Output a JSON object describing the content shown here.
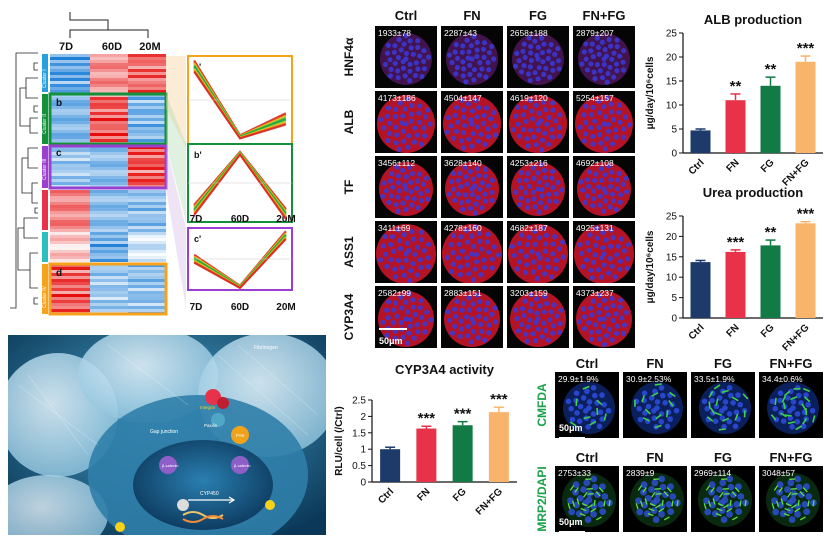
{
  "heatmap": {
    "columns": [
      "7D",
      "60D",
      "20M"
    ],
    "clusters": [
      "Cluster I",
      "Cluster II",
      "Cluster III",
      "Cluster IV"
    ],
    "box_labels": [
      "b",
      "c",
      "d"
    ],
    "trend_labels": [
      "a'",
      "b'",
      "c'"
    ],
    "trend_axis": [
      "7D",
      "60D",
      "20M"
    ],
    "colors": {
      "cluster_b": "#12903a",
      "cluster_c": "#9b3fd0",
      "cluster_d": "#f7a21b",
      "cluster_a": "#f7a21b"
    }
  },
  "micro_grid": {
    "columns": [
      "Ctrl",
      "FN",
      "FG",
      "FN+FG"
    ],
    "rows": [
      {
        "label": "HNF4α",
        "values": [
          "1933±78",
          "2287±43",
          "2658±188",
          "2879±207"
        ]
      },
      {
        "label": "ALB",
        "values": [
          "4173±186",
          "4504±147",
          "4619±120",
          "5254±157"
        ]
      },
      {
        "label": "TF",
        "values": [
          "3456±112",
          "3628±140",
          "4253±216",
          "4692±108"
        ]
      },
      {
        "label": "ASS1",
        "values": [
          "3411±69",
          "4278±160",
          "4682±187",
          "4925±131"
        ]
      },
      {
        "label": "CYP3A4",
        "values": [
          "2582±99",
          "2883±151",
          "3203±159",
          "4373±237"
        ]
      }
    ],
    "scale_bar": "50μm"
  },
  "chart_data": [
    {
      "type": "bar",
      "id": "alb",
      "title": "ALB production",
      "ylabel": "μg/day/10⁶cells",
      "categories": [
        "Ctrl",
        "FN",
        "FG",
        "FN+FG"
      ],
      "values": [
        4.7,
        11,
        14,
        19
      ],
      "errors": [
        0.3,
        1.3,
        1.8,
        1.2
      ],
      "significance": [
        "",
        "**",
        "**",
        "***"
      ],
      "ylim": [
        0,
        25
      ],
      "yticks": [
        0,
        5,
        10,
        15,
        20,
        25
      ]
    },
    {
      "type": "bar",
      "id": "urea",
      "title": "Urea production",
      "ylabel": "μg/day/10⁶cells",
      "categories": [
        "Ctrl",
        "FN",
        "FG",
        "FN+FG"
      ],
      "values": [
        13.7,
        16.2,
        17.8,
        23.2
      ],
      "errors": [
        0.4,
        0.5,
        1.3,
        0.4
      ],
      "significance": [
        "",
        "***",
        "**",
        "***"
      ],
      "ylim": [
        0,
        25
      ],
      "yticks": [
        0,
        5,
        10,
        15,
        20,
        25
      ]
    },
    {
      "type": "bar",
      "id": "cyp",
      "title": "CYP3A4 activity",
      "ylabel": "RLU/cell (/Ctrl)",
      "categories": [
        "Ctrl",
        "FN",
        "FG",
        "FN+FG"
      ],
      "values": [
        1.0,
        1.63,
        1.73,
        2.13
      ],
      "errors": [
        0.06,
        0.07,
        0.11,
        0.15
      ],
      "significance": [
        "",
        "***",
        "***",
        "***"
      ],
      "ylim": [
        0,
        2.5
      ],
      "yticks": [
        0.0,
        0.5,
        1.0,
        1.5,
        2.0,
        2.5
      ]
    }
  ],
  "bar_colors": [
    "#1d3a6a",
    "#e8324a",
    "#127a45",
    "#f8b46a"
  ],
  "cmfda": {
    "row_label": "CMFDA",
    "columns": [
      "Ctrl",
      "FN",
      "FG",
      "FN+FG"
    ],
    "values": [
      "29.9±1.9%",
      "30.9±2.53%",
      "33.5±1.9%",
      "34.4±0.6%"
    ],
    "scale_bar": "50μm"
  },
  "mrp2": {
    "row_label": "MRP2/DAPI",
    "columns": [
      "Ctrl",
      "FN",
      "FG",
      "FN+FG"
    ],
    "values": [
      "2753±33",
      "2839±9",
      "2969±114",
      "3048±57"
    ],
    "scale_bar": "50μm"
  },
  "illustration": {
    "labels": [
      "Fibrinogen",
      "Gap junction",
      "Paxilin",
      "Integrin",
      "β-catenin",
      "β-catenin",
      "FAK",
      "CYP450"
    ]
  }
}
